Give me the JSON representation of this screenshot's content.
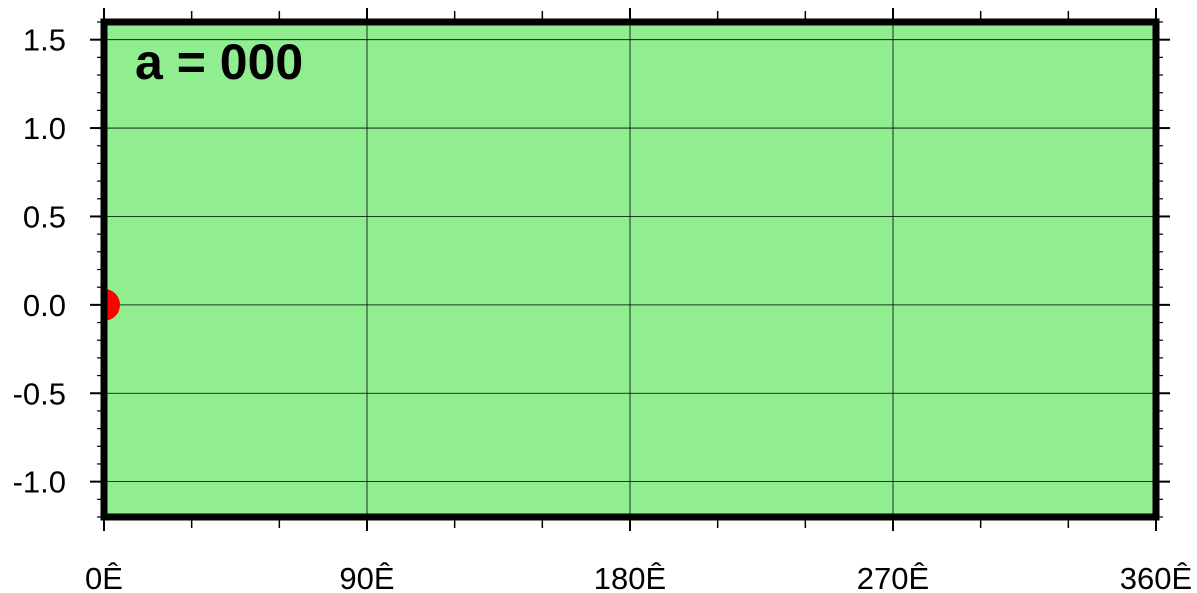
{
  "chart_data": {
    "type": "scatter",
    "title": "",
    "xlabel": "",
    "ylabel": "",
    "xlim": [
      0,
      360
    ],
    "ylim": [
      -1.2,
      1.6
    ],
    "x_ticks": [
      0,
      90,
      180,
      270,
      360
    ],
    "x_tick_labels": [
      "0Ê",
      "90Ê",
      "180Ê",
      "270Ê",
      "360Ê"
    ],
    "y_ticks": [
      1.5,
      1.0,
      0.5,
      0.0,
      -0.5,
      -1.0
    ],
    "y_tick_labels": [
      "1.5",
      "1.0",
      "0.5",
      "0.0",
      "-0.5",
      "-1.0"
    ],
    "grid": true,
    "annotation": "a = 000",
    "points": [
      {
        "x": 0,
        "y": 0
      }
    ],
    "colors": {
      "background": "#90ee90",
      "frame": "#000000",
      "grid": "#000000",
      "point": "#ff0000"
    }
  }
}
